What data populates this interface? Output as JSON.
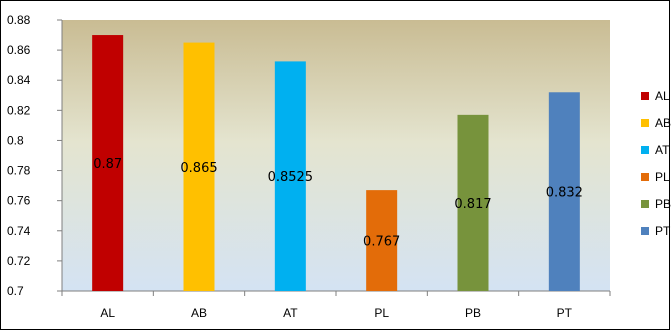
{
  "chart_data": {
    "type": "bar",
    "title": "",
    "xlabel": "",
    "ylabel": "",
    "categories": [
      "AL",
      "AB",
      "AT",
      "PL",
      "PB",
      "PT"
    ],
    "values": [
      0.87,
      0.865,
      0.8525,
      0.767,
      0.817,
      0.832
    ],
    "data_labels": [
      "0.87",
      "0.865",
      "0.8525",
      "0.767",
      "0.817",
      "0.832"
    ],
    "colors": [
      "#C00000",
      "#FFC000",
      "#00B0F0",
      "#E36C09",
      "#77933C",
      "#4F81BD"
    ],
    "ylim": [
      0.7,
      0.88
    ],
    "yticks": [
      0.7,
      0.72,
      0.74,
      0.76,
      0.78,
      0.8,
      0.82,
      0.84,
      0.86,
      0.88
    ],
    "ytick_labels": [
      "0.7",
      "0.72",
      "0.74",
      "0.76",
      "0.78",
      "0.8",
      "0.82",
      "0.84",
      "0.86",
      "0.88"
    ],
    "grid": false,
    "plot_background": "gradient tan (top) to pale blue (bottom)",
    "legend": {
      "position": "right",
      "entries": [
        "AL",
        "AB",
        "AT",
        "PL",
        "PB",
        "PT"
      ]
    }
  }
}
